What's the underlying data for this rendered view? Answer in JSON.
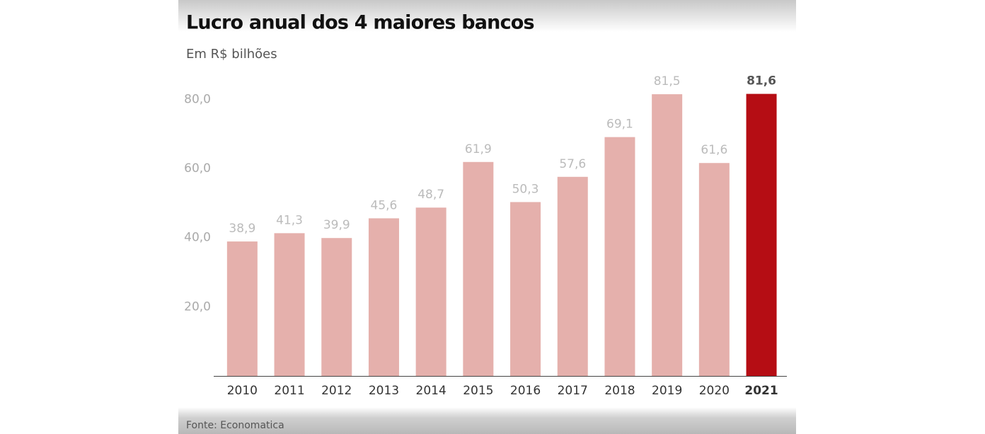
{
  "chart_data": {
    "type": "bar",
    "title": "Lucro anual dos 4 maiores bancos",
    "subtitle": "Em R$ bilhões",
    "source": "Fonte: Economatica",
    "categories": [
      "2010",
      "2011",
      "2012",
      "2013",
      "2014",
      "2015",
      "2016",
      "2017",
      "2018",
      "2019",
      "2020",
      "2021"
    ],
    "values": [
      38.9,
      41.3,
      39.9,
      45.6,
      48.7,
      61.9,
      50.3,
      57.6,
      69.1,
      81.5,
      61.6,
      81.6
    ],
    "value_labels": [
      "38,9",
      "41,3",
      "39,9",
      "45,6",
      "48,7",
      "61,9",
      "50,3",
      "57,6",
      "69,1",
      "81,5",
      "61,6",
      "81,6"
    ],
    "colors": [
      "#e5b0ac",
      "#e5b0ac",
      "#e5b0ac",
      "#e5b0ac",
      "#e5b0ac",
      "#e5b0ac",
      "#e5b0ac",
      "#e5b0ac",
      "#e5b0ac",
      "#e5b0ac",
      "#e5b0ac",
      "#b50d14"
    ],
    "ylim": [
      0,
      85
    ],
    "yticks": [
      {
        "value": 20,
        "label": "20,0"
      },
      {
        "value": 40,
        "label": "40,0"
      },
      {
        "value": 60,
        "label": "60,0"
      },
      {
        "value": 80,
        "label": "80,0"
      }
    ],
    "grid": false
  }
}
